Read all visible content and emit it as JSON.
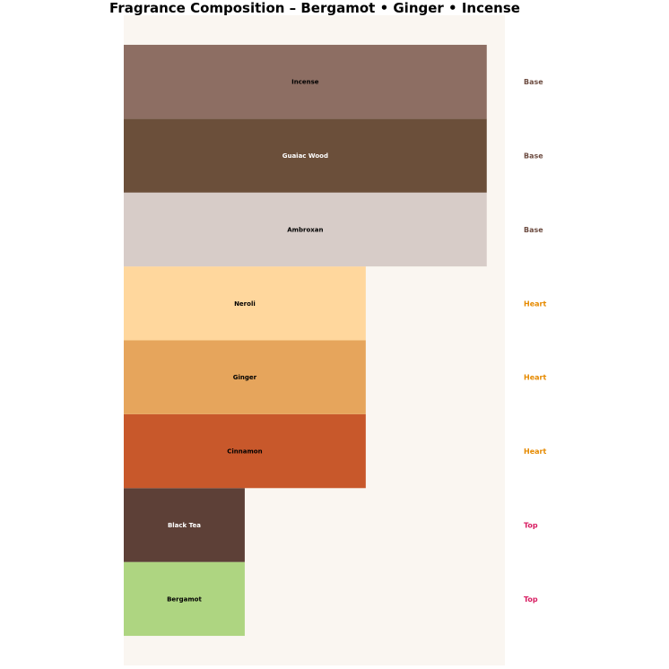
{
  "chart_data": {
    "type": "bar",
    "orientation": "horizontal",
    "title": "Fragrance Composition – Bergamot • Ginger • Incense",
    "xlabel": "",
    "ylabel": "",
    "xlim": [
      0,
      3.15
    ],
    "grid": false,
    "axes_visible": false,
    "background": "#faf6f1",
    "categories": [
      "Bergamot",
      "Black Tea",
      "Cinnamon",
      "Ginger",
      "Neroli",
      "Ambroxan",
      "Guaiac Wood",
      "Incense"
    ],
    "values": [
      1,
      1,
      2,
      2,
      2,
      3,
      3,
      3
    ],
    "tiers": [
      "Top",
      "Top",
      "Heart",
      "Heart",
      "Heart",
      "Base",
      "Base",
      "Base"
    ],
    "bar_colors": [
      "#aed581",
      "#5d4037",
      "#c8582b",
      "#e6a55c",
      "#ffd79d",
      "#d7ccc8",
      "#6b4f3a",
      "#8d6e63"
    ],
    "label_colors": [
      "#000000",
      "#ffffff",
      "#000000",
      "#000000",
      "#000000",
      "#000000",
      "#ffffff",
      "#000000"
    ],
    "tier_colors": {
      "Top": "#d81b60",
      "Heart": "#e68a00",
      "Base": "#6d4c41"
    }
  }
}
